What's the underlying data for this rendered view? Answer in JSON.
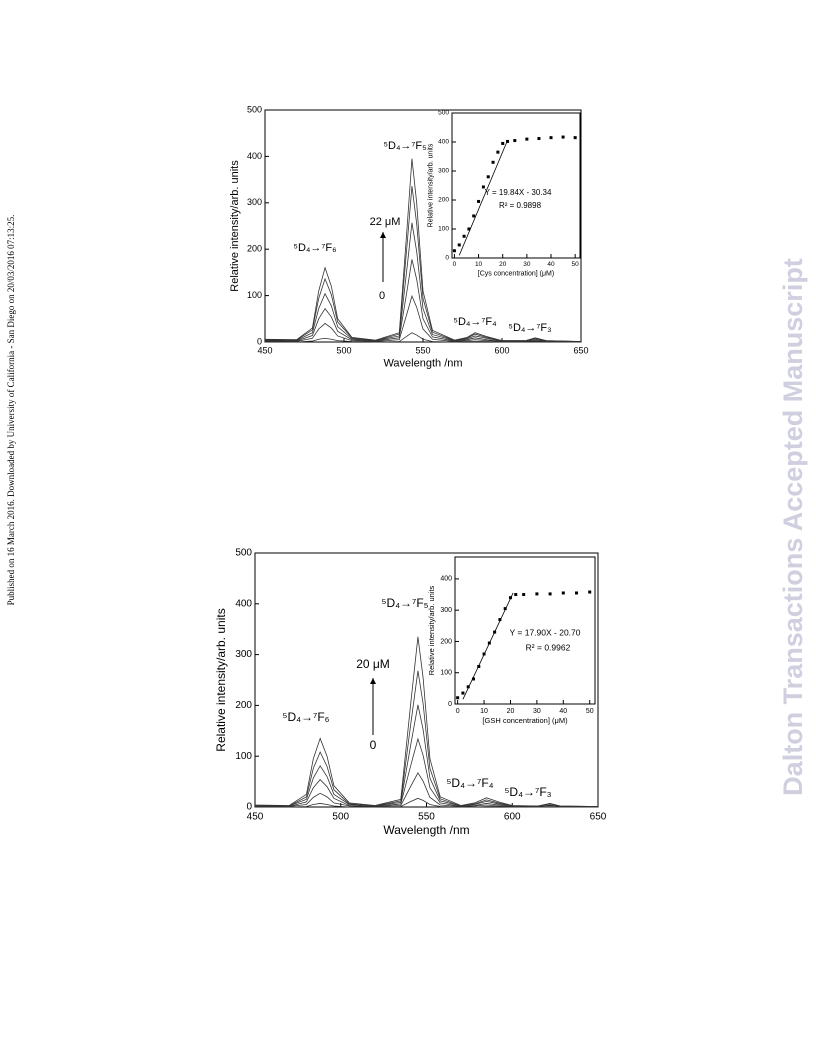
{
  "side_note": "Published on 16 March 2016. Downloaded by University of California - San Diego on 20/03/2016 07:13:25.",
  "watermark": "Dalton Transactions Accepted Manuscript",
  "chart_data": [
    {
      "type": "line",
      "xlabel": "Wavelength /nm",
      "ylabel": "Relative intensity/arb. units",
      "xlim": [
        450,
        650
      ],
      "ylim": [
        0,
        500
      ],
      "xticks": [
        450,
        500,
        550,
        600,
        650
      ],
      "yticks": [
        0,
        100,
        200,
        300,
        400,
        500
      ],
      "x": [
        450,
        470,
        480,
        484,
        488,
        492,
        496,
        505,
        520,
        535,
        540,
        543,
        546,
        550,
        556,
        570,
        578,
        583,
        590,
        600,
        615,
        621,
        628,
        650
      ],
      "series": [
        {
          "color": "#333333",
          "values": [
            0,
            0,
            2,
            6,
            8,
            6,
            3,
            1,
            0,
            1,
            13,
            20,
            15,
            6,
            1,
            0,
            1,
            1,
            1,
            0,
            0,
            0,
            0,
            0
          ]
        },
        {
          "color": "#333333",
          "values": [
            2,
            1,
            8,
            28,
            40,
            30,
            13,
            3,
            1,
            5,
            63,
            99,
            75,
            28,
            6,
            1,
            3,
            5,
            3,
            1,
            1,
            2,
            1,
            0
          ]
        },
        {
          "color": "#333333",
          "values": [
            3,
            2,
            14,
            50,
            72,
            54,
            23,
            5,
            2,
            9,
            113,
            178,
            135,
            50,
            11,
            2,
            5,
            9,
            5,
            1,
            1,
            4,
            1,
            0
          ]
        },
        {
          "color": "#333333",
          "values": [
            4,
            3,
            20,
            72,
            104,
            78,
            33,
            7,
            3,
            13,
            163,
            257,
            195,
            72,
            16,
            3,
            7,
            13,
            8,
            2,
            2,
            6,
            2,
            1
          ]
        },
        {
          "color": "#333333",
          "values": [
            5,
            4,
            26,
            94,
            136,
            102,
            43,
            9,
            3,
            17,
            213,
            336,
            255,
            94,
            21,
            3,
            9,
            17,
            10,
            3,
            3,
            8,
            3,
            1
          ]
        },
        {
          "color": "#333333",
          "values": [
            6,
            5,
            30,
            110,
            160,
            120,
            50,
            10,
            4,
            20,
            250,
            395,
            300,
            110,
            25,
            4,
            10,
            20,
            12,
            3,
            3,
            9,
            3,
            1
          ]
        }
      ],
      "annotations": [
        "⁵D₄→⁷F₆",
        "⁵D₄→⁷F₅",
        "⁵D₄→⁷F₄",
        "⁵D₄→⁷F₃",
        "22 μM",
        "0"
      ]
    },
    {
      "type": "scatter",
      "xlabel": "[Cys concentration] (μM)",
      "ylabel": "Relative intensity/arb. units",
      "xlim": [
        -1,
        52
      ],
      "ylim": [
        0,
        500
      ],
      "xticks": [
        0,
        10,
        20,
        30,
        40,
        50
      ],
      "yticks": [
        0,
        100,
        200,
        300,
        400,
        500
      ],
      "x": [
        0,
        2,
        4,
        6,
        8,
        10,
        12,
        14,
        16,
        18,
        20,
        22,
        25,
        30,
        35,
        40,
        45,
        50
      ],
      "series": [
        {
          "mode": "markers",
          "color": "#000000",
          "values": [
            25,
            45,
            75,
            100,
            145,
            195,
            245,
            280,
            330,
            365,
            395,
            402,
            405,
            410,
            412,
            415,
            417,
            415
          ]
        },
        {
          "mode": "line",
          "color": "#000000",
          "x": [
            2,
            22
          ],
          "values": [
            9,
            406
          ]
        }
      ],
      "annotations": [
        "Y = 19.84X - 30.34",
        "R² = 0.9898"
      ]
    },
    {
      "type": "line",
      "xlabel": "Wavelength /nm",
      "ylabel": "Relative intensity/arb. units",
      "xlim": [
        450,
        650
      ],
      "ylim": [
        0,
        500
      ],
      "xticks": [
        450,
        500,
        550,
        600,
        650
      ],
      "yticks": [
        0,
        100,
        200,
        300,
        400,
        500
      ],
      "x": [
        450,
        470,
        480,
        484,
        488,
        492,
        496,
        505,
        520,
        535,
        541,
        545,
        548,
        552,
        558,
        570,
        578,
        585,
        592,
        600,
        615,
        622,
        628,
        650
      ],
      "series": [
        {
          "color": "#333333",
          "values": [
            0,
            0,
            1,
            5,
            7,
            5,
            2,
            0,
            0,
            1,
            11,
            17,
            13,
            5,
            1,
            0,
            0,
            1,
            1,
            0,
            0,
            0,
            0,
            0
          ]
        },
        {
          "color": "#333333",
          "values": [
            1,
            1,
            5,
            19,
            27,
            20,
            8,
            2,
            1,
            3,
            42,
            67,
            51,
            19,
            4,
            1,
            2,
            4,
            2,
            1,
            0,
            1,
            0,
            0
          ]
        },
        {
          "color": "#333333",
          "values": [
            2,
            1,
            10,
            38,
            54,
            40,
            17,
            3,
            1,
            6,
            84,
            134,
            102,
            38,
            8,
            1,
            3,
            7,
            4,
            1,
            1,
            3,
            1,
            0
          ]
        },
        {
          "color": "#333333",
          "values": [
            2,
            2,
            15,
            57,
            81,
            60,
            25,
            5,
            2,
            9,
            126,
            201,
            153,
            57,
            12,
            2,
            5,
            11,
            6,
            2,
            1,
            4,
            1,
            1
          ]
        },
        {
          "color": "#333333",
          "values": [
            3,
            2,
            20,
            76,
            108,
            80,
            34,
            6,
            2,
            12,
            168,
            268,
            204,
            76,
            16,
            2,
            6,
            14,
            8,
            2,
            2,
            6,
            2,
            1
          ]
        },
        {
          "color": "#333333",
          "values": [
            4,
            3,
            25,
            95,
            135,
            100,
            42,
            8,
            3,
            15,
            210,
            335,
            255,
            95,
            20,
            3,
            8,
            18,
            10,
            3,
            2,
            7,
            2,
            1
          ]
        }
      ],
      "annotations": [
        "⁵D₄→⁷F₆",
        "⁵D₄→⁷F₅",
        "⁵D₄→⁷F₄",
        "⁵D₄→⁷F₃",
        "20 μM",
        "0"
      ]
    },
    {
      "type": "scatter",
      "xlabel": "[GSH concentration] (μM)",
      "ylabel": "Relative intensity/arb. units",
      "xlim": [
        -1,
        52
      ],
      "ylim": [
        0,
        470
      ],
      "xticks": [
        0,
        10,
        20,
        30,
        40,
        50
      ],
      "yticks": [
        0,
        100,
        200,
        300,
        400
      ],
      "x": [
        0,
        2,
        4,
        6,
        8,
        10,
        12,
        14,
        16,
        18,
        20,
        22,
        25,
        30,
        35,
        40,
        45,
        50
      ],
      "series": [
        {
          "mode": "markers",
          "color": "#000000",
          "values": [
            20,
            35,
            55,
            80,
            120,
            160,
            195,
            230,
            270,
            305,
            340,
            350,
            350,
            352,
            352,
            355,
            355,
            358
          ]
        },
        {
          "mode": "line",
          "color": "#000000",
          "x": [
            2,
            21
          ],
          "values": [
            15,
            355
          ]
        }
      ],
      "annotations": [
        "Y = 17.90X - 20.70",
        "R² = 0.9962"
      ]
    }
  ]
}
